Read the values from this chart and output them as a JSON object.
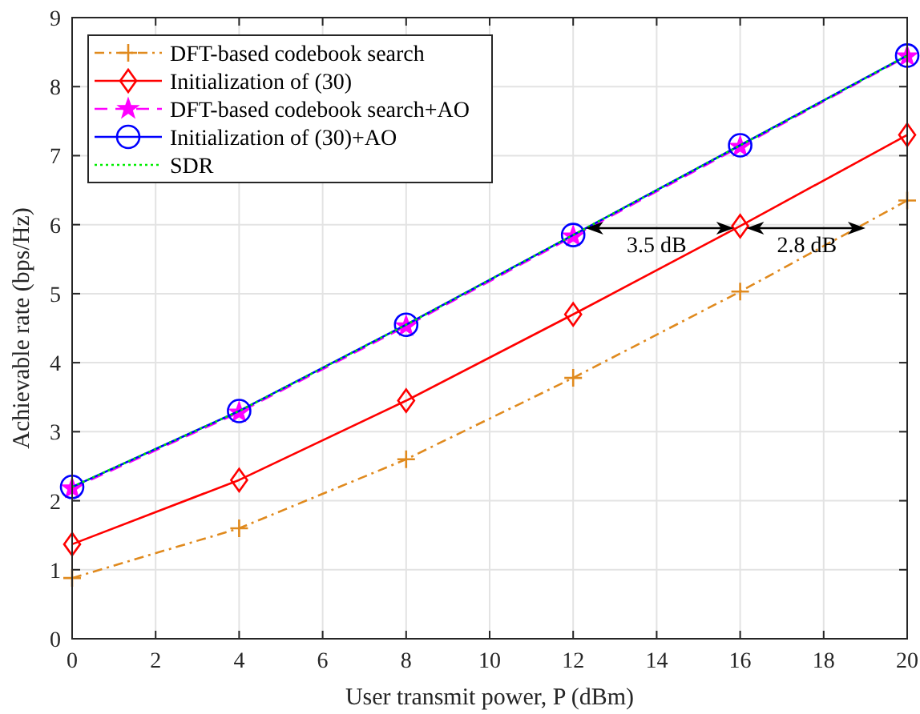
{
  "chart_data": {
    "type": "line",
    "xlabel": "User transmit power,  P (dBm)",
    "ylabel": "Achievable rate (bps/Hz)",
    "x": [
      0,
      4,
      8,
      12,
      16,
      20
    ],
    "series": [
      {
        "name": "DFT-based codebook search",
        "color": "#e08a1e",
        "marker": "cross",
        "line_style": "dashdot",
        "values": [
          0.88,
          1.6,
          2.6,
          3.78,
          5.03,
          6.35
        ]
      },
      {
        "name": "Initialization of (30)",
        "color": "#ff0000",
        "marker": "diamond",
        "line_style": "solid",
        "values": [
          1.37,
          2.3,
          3.45,
          4.7,
          5.98,
          7.3
        ]
      },
      {
        "name": "DFT-based codebook search+AO",
        "color": "#ff00ff",
        "marker": "star",
        "line_style": "dashed",
        "values": [
          2.18,
          3.28,
          4.53,
          5.83,
          7.13,
          8.44
        ]
      },
      {
        "name": "Initialization of (30)+AO",
        "color": "#0000ff",
        "marker": "circle",
        "line_style": "solid",
        "values": [
          2.2,
          3.3,
          4.55,
          5.85,
          7.15,
          8.45
        ]
      },
      {
        "name": "SDR",
        "color": "#00ee00",
        "marker": "none",
        "line_style": "dotted",
        "values": [
          2.2,
          3.3,
          4.55,
          5.85,
          7.15,
          8.45
        ]
      }
    ],
    "xlim": [
      0,
      20
    ],
    "xticks": [
      0,
      2,
      4,
      6,
      8,
      10,
      12,
      14,
      16,
      18,
      20
    ],
    "ylim": [
      0,
      9
    ],
    "yticks": [
      0,
      1,
      2,
      3,
      4,
      5,
      6,
      7,
      8,
      9
    ],
    "grid": true,
    "legend": "top left",
    "annotations": [
      "3.5 dB",
      "2.8 dB"
    ]
  }
}
